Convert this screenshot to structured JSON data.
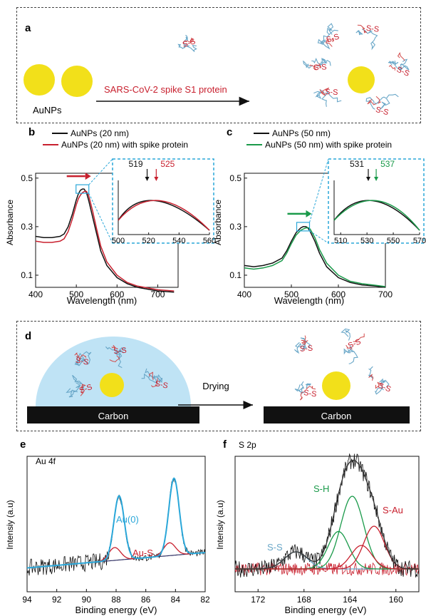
{
  "colors": {
    "gold": "#f2e01a",
    "black": "#111111",
    "red": "#c8202e",
    "green": "#1a9a4a",
    "cyan": "#2aa7d9",
    "lightblue": "#bfe3f5",
    "protein_blue": "#6aa7c8",
    "protein_red": "#d24a4a"
  },
  "panel_a": {
    "letter": "a",
    "np_label": "AuNPs",
    "arrow_label": "SARS-CoV-2 spike S1 protein",
    "ss": "S-S"
  },
  "panel_d": {
    "letter": "d",
    "carbon_left": "Carbon",
    "carbon_right": "Carbon",
    "drying": "Drying",
    "ss": "S-S"
  },
  "chart_data": [
    {
      "id": "b",
      "type": "line",
      "letter": "b",
      "xlabel": "Wavelength (nm)",
      "ylabel": "Absorbance",
      "xlim": [
        400,
        750
      ],
      "ylim": [
        0.05,
        0.52
      ],
      "xticks": [
        400,
        500,
        600,
        700
      ],
      "yticks": [
        0.1,
        0.3,
        0.5
      ],
      "legend": [
        "AuNPs (20 nm)",
        "AuNPs (20 nm) with spike protein"
      ],
      "series": [
        {
          "name": "AuNPs (20 nm)",
          "color": "black",
          "x": [
            400,
            420,
            440,
            460,
            470,
            480,
            490,
            500,
            505,
            510,
            515,
            519,
            525,
            530,
            540,
            550,
            560,
            575,
            600,
            625,
            650,
            700,
            740
          ],
          "y": [
            0.26,
            0.255,
            0.255,
            0.26,
            0.27,
            0.3,
            0.35,
            0.41,
            0.435,
            0.45,
            0.455,
            0.455,
            0.44,
            0.41,
            0.34,
            0.27,
            0.2,
            0.14,
            0.09,
            0.065,
            0.05,
            0.035,
            0.03
          ]
        },
        {
          "name": "AuNPs (20 nm) with spike protein",
          "color": "red",
          "x": [
            400,
            420,
            440,
            460,
            470,
            480,
            490,
            500,
            505,
            510,
            515,
            520,
            525,
            530,
            540,
            550,
            560,
            575,
            600,
            625,
            650,
            700,
            740
          ],
          "y": [
            0.24,
            0.235,
            0.235,
            0.24,
            0.25,
            0.28,
            0.33,
            0.39,
            0.415,
            0.43,
            0.44,
            0.445,
            0.445,
            0.43,
            0.365,
            0.29,
            0.22,
            0.155,
            0.1,
            0.07,
            0.055,
            0.04,
            0.035
          ]
        }
      ],
      "inset": {
        "xlim": [
          500,
          560
        ],
        "xticks": [
          500,
          520,
          540,
          560
        ],
        "peaks": [
          {
            "label": "519",
            "x": 519,
            "color": "black"
          },
          {
            "label": "525",
            "x": 525,
            "color": "red"
          }
        ]
      }
    },
    {
      "id": "c",
      "type": "line",
      "letter": "c",
      "xlabel": "Wavelength (nm)",
      "ylabel": "Absorbance",
      "xlim": [
        400,
        700
      ],
      "ylim": [
        0.05,
        0.52
      ],
      "xticks": [
        400,
        500,
        600,
        700
      ],
      "yticks": [
        0.1,
        0.3,
        0.5
      ],
      "legend": [
        "AuNPs (50 nm)",
        "AuNPs (50 nm) with spike protein"
      ],
      "series": [
        {
          "name": "AuNPs (50 nm)",
          "color": "black",
          "x": [
            400,
            420,
            440,
            460,
            480,
            490,
            500,
            510,
            520,
            525,
            531,
            535,
            540,
            550,
            560,
            575,
            600,
            625,
            650,
            680,
            700
          ],
          "y": [
            0.14,
            0.135,
            0.14,
            0.15,
            0.17,
            0.2,
            0.24,
            0.275,
            0.295,
            0.3,
            0.3,
            0.295,
            0.28,
            0.24,
            0.19,
            0.135,
            0.09,
            0.07,
            0.06,
            0.055,
            0.05
          ]
        },
        {
          "name": "AuNPs (50 nm) with spike protein",
          "color": "green",
          "x": [
            400,
            420,
            440,
            460,
            480,
            490,
            500,
            510,
            520,
            525,
            531,
            537,
            540,
            550,
            560,
            575,
            600,
            625,
            650,
            680,
            700
          ],
          "y": [
            0.13,
            0.125,
            0.13,
            0.14,
            0.16,
            0.19,
            0.23,
            0.265,
            0.285,
            0.29,
            0.295,
            0.295,
            0.29,
            0.255,
            0.205,
            0.15,
            0.1,
            0.075,
            0.065,
            0.058,
            0.053
          ]
        }
      ],
      "inset": {
        "xlim": [
          505,
          570
        ],
        "xticks": [
          510,
          530,
          550,
          570
        ],
        "peaks": [
          {
            "label": "531",
            "x": 531,
            "color": "black"
          },
          {
            "label": "537",
            "x": 537,
            "color": "green"
          }
        ]
      }
    },
    {
      "id": "e",
      "type": "line",
      "letter": "e",
      "title": "Au 4f",
      "xlabel": "Binding energy (eV)",
      "ylabel": "Intensiy (a.u)",
      "xlim": [
        94,
        82
      ],
      "xticks": [
        94,
        92,
        90,
        88,
        86,
        84,
        82
      ],
      "annotations": [
        {
          "text": "Au(0)",
          "color": "cyan"
        },
        {
          "text": "Au-S",
          "color": "red"
        }
      ]
    },
    {
      "id": "f",
      "type": "line",
      "letter": "f",
      "title": "S 2p",
      "xlabel": "Binding energy (eV)",
      "ylabel": "Intensiy (a.u)",
      "xlim": [
        174,
        158
      ],
      "xticks": [
        172,
        168,
        164,
        160
      ],
      "annotations": [
        {
          "text": "S-H",
          "color": "green"
        },
        {
          "text": "S-Au",
          "color": "red"
        },
        {
          "text": "S-S",
          "color": "protein_blue"
        }
      ]
    }
  ]
}
